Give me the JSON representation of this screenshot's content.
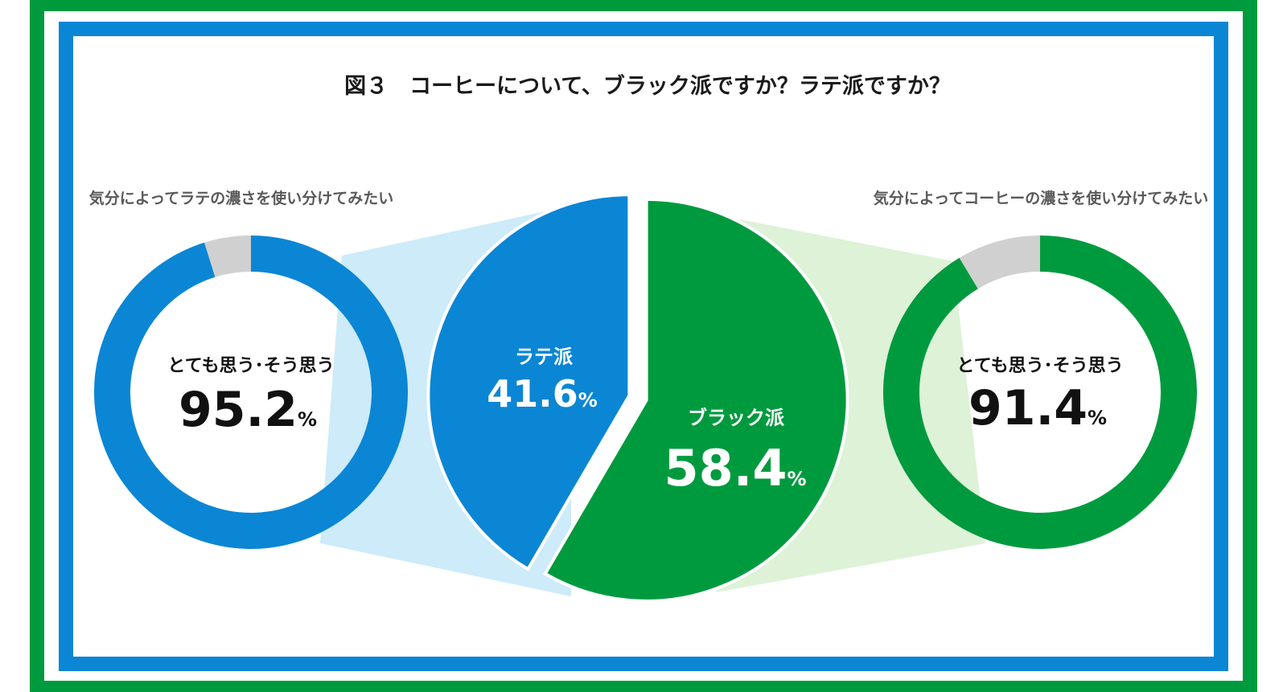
{
  "chart_data": {
    "type": "pie",
    "title": "図３　コーヒーについて、ブラック派ですか？ラテ派ですか？",
    "main_pie": {
      "slices": [
        {
          "name": "ラテ派",
          "value": 41.6,
          "unit": "%",
          "color": "#0B86D4"
        },
        {
          "name": "ブラック派",
          "value": 58.4,
          "unit": "%",
          "color": "#009A3E"
        }
      ]
    },
    "donuts": [
      {
        "subtitle": "気分によってラテの濃さを使い分けてみたい",
        "label": "とても思う･そう思う",
        "value": 95.2,
        "unit": "%",
        "color": "#0B86D4",
        "rest_color": "#D0D0D0"
      },
      {
        "subtitle": "気分によってコーヒーの濃さを使い分けてみたい",
        "label": "とても思う･そう思う",
        "value": 91.4,
        "unit": "%",
        "color": "#009A3E",
        "rest_color": "#D0D0D0"
      }
    ],
    "colors": {
      "outer_frame": "#009A3E",
      "inner_frame": "#0B86D4",
      "connector_left": "#CDEBF9",
      "connector_right": "#DDF2D7"
    }
  }
}
